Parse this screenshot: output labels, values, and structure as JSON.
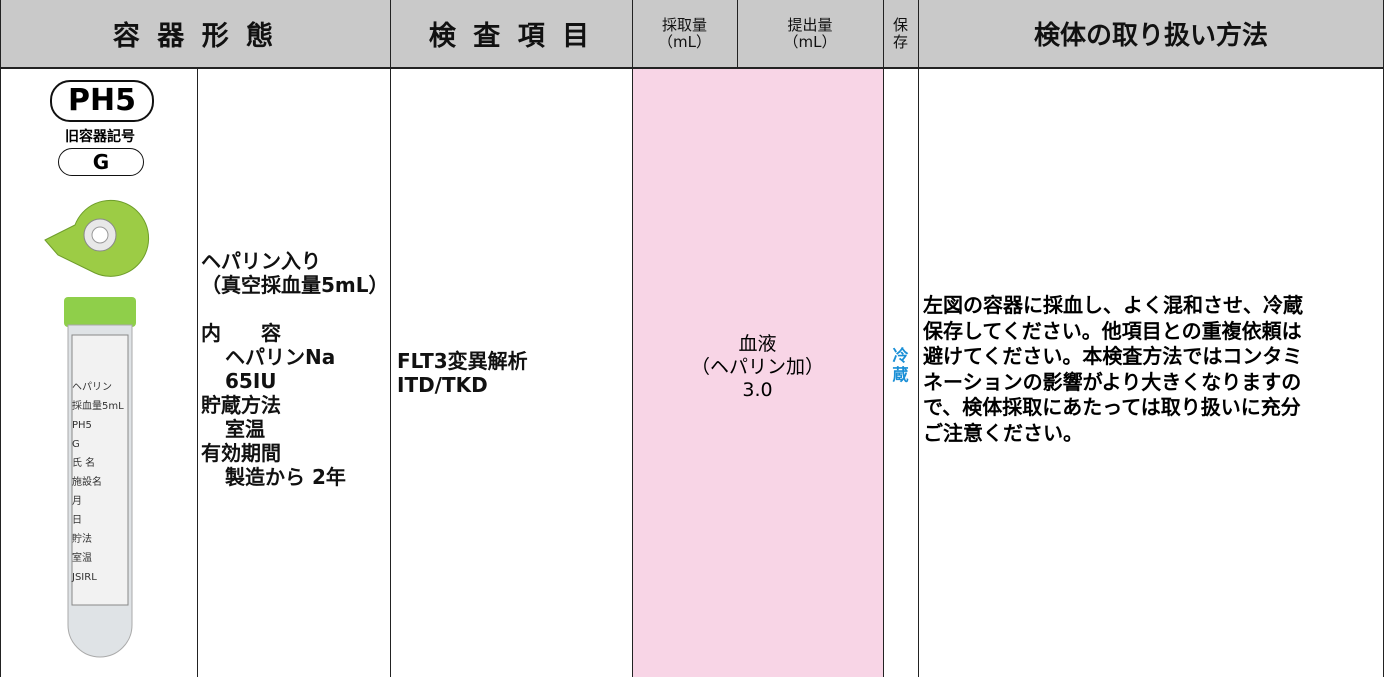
{
  "header": {
    "container_form": "容 器 形 態",
    "test_item": "検 査 項 目",
    "collection_volume": [
      "採取量",
      "（mL）"
    ],
    "submission_volume": [
      "提出量",
      "（mL）"
    ],
    "storage": [
      "保",
      "存"
    ],
    "handling": "検体の取り扱い方法"
  },
  "container": {
    "code": "PH5",
    "old_code_label": "旧容器記号",
    "old_code": "G",
    "tube_labels": [
      "ヘパリン",
      "採血量5mL",
      "PH5",
      "G",
      "氏 名",
      "施設名",
      "月",
      "日",
      "貯法",
      "室温",
      "JSIRL"
    ],
    "description": [
      "ヘパリン入り",
      "（真空採血量5mL）",
      "内　　容",
      "ヘパリンNa",
      "65IU",
      "貯蔵方法",
      "室温",
      "有効期間",
      "製造から 2年"
    ]
  },
  "test_item": [
    "FLT3変異解析",
    "ITD/TKD"
  ],
  "specimen": [
    "血液",
    "（ヘパリン加）",
    "3.0"
  ],
  "storage": [
    "冷",
    "蔵"
  ],
  "handling": [
    "左図の容器に採血し、よく混和させ、冷蔵",
    "保存してください。他項目との重複依頼は",
    "避けてください。本検査方法ではコンタミ",
    "ネーションの影響がより大きくなりますの",
    "で、検体採取にあたっては取り扱いに充分",
    "ご注意ください。"
  ]
}
